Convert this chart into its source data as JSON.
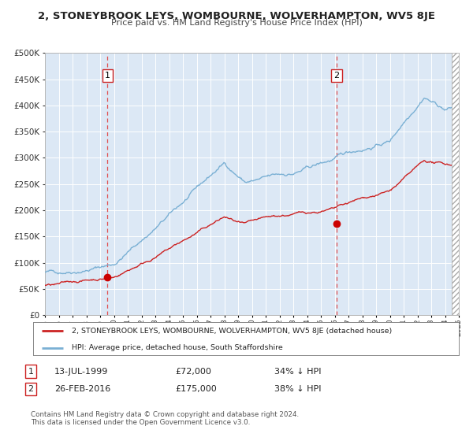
{
  "title": "2, STONEYBROOK LEYS, WOMBOURNE, WOLVERHAMPTON, WV5 8JE",
  "subtitle": "Price paid vs. HM Land Registry's House Price Index (HPI)",
  "bg_color": "#ffffff",
  "plot_bg_color": "#dce8f5",
  "grid_color": "#b8cfe0",
  "hpi_color": "#7ab0d4",
  "price_color": "#cc2222",
  "marker_color": "#cc0000",
  "vline_color": "#e05050",
  "sale1_year": 1999.54,
  "sale1_price": 72000,
  "sale1_label": "1",
  "sale2_year": 2016.15,
  "sale2_price": 175000,
  "sale2_label": "2",
  "ylim": [
    0,
    500000
  ],
  "xlim_start": 1995,
  "xlim_end": 2025,
  "legend_line1": "2, STONEYBROOK LEYS, WOMBOURNE, WOLVERHAMPTON, WV5 8JE (detached house)",
  "legend_line2": "HPI: Average price, detached house, South Staffordshire",
  "table_row1_num": "1",
  "table_row1_date": "13-JUL-1999",
  "table_row1_price": "£72,000",
  "table_row1_hpi": "34% ↓ HPI",
  "table_row2_num": "2",
  "table_row2_date": "26-FEB-2016",
  "table_row2_price": "£175,000",
  "table_row2_hpi": "38% ↓ HPI",
  "footnote1": "Contains HM Land Registry data © Crown copyright and database right 2024.",
  "footnote2": "This data is licensed under the Open Government Licence v3.0."
}
